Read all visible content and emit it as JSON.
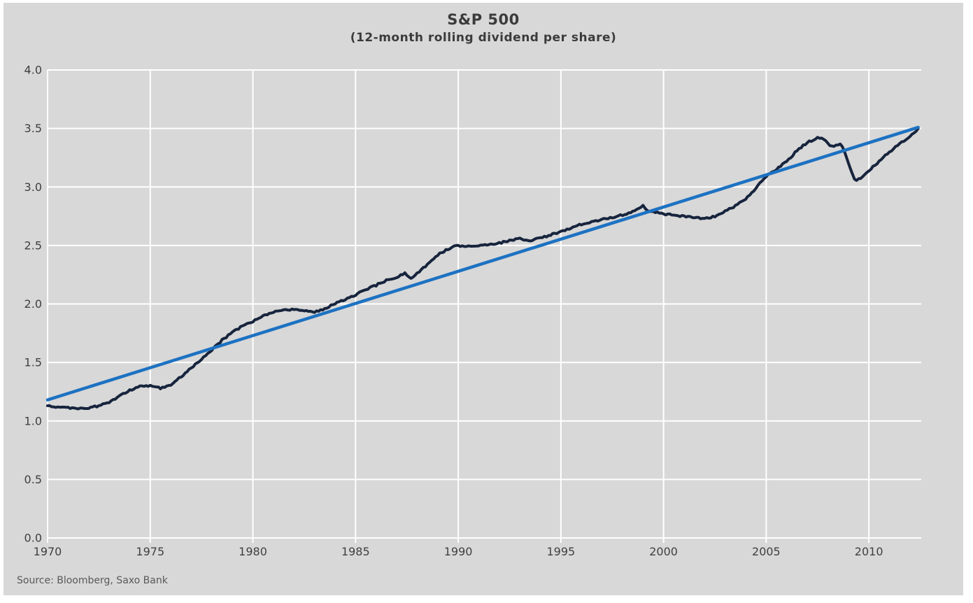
{
  "header": {
    "title": "S&P 500",
    "subtitle": "(12-month rolling dividend per share)"
  },
  "footer": {
    "source": "Source: Bloomberg, Saxo Bank"
  },
  "colors": {
    "panel_background": "#d8d8d8",
    "gridline": "#ffffff",
    "series_dividend": "#17243d",
    "series_trend": "#1d72c2",
    "title_text": "#3b3b3b",
    "tick_text": "#3f3f3f",
    "source_text": "#595959"
  },
  "chart_data": {
    "type": "line",
    "title": "S&P 500",
    "subtitle": "(12-month rolling dividend per share)",
    "xlabel": "",
    "ylabel": "",
    "xlim": [
      1970,
      2012.55
    ],
    "ylim": [
      0.0,
      4.0
    ],
    "xticks": [
      1970,
      1975,
      1980,
      1985,
      1990,
      1995,
      2000,
      2005,
      2010
    ],
    "yticks": [
      0.0,
      0.5,
      1.0,
      1.5,
      2.0,
      2.5,
      3.0,
      3.5,
      4.0
    ],
    "ytick_decimals": 1,
    "grid": true,
    "legend_position": "none",
    "source": "Source: Bloomberg, Saxo Bank",
    "series": [
      {
        "name": "S&P 500 12-month rolling dividend per share",
        "color": "#17243d",
        "width": 4,
        "style": "wiggly",
        "points": [
          [
            1970.0,
            1.13
          ],
          [
            1970.5,
            1.12
          ],
          [
            1971.0,
            1.11
          ],
          [
            1971.5,
            1.11
          ],
          [
            1972.0,
            1.11
          ],
          [
            1972.5,
            1.13
          ],
          [
            1973.0,
            1.16
          ],
          [
            1973.5,
            1.21
          ],
          [
            1974.0,
            1.26
          ],
          [
            1974.5,
            1.3
          ],
          [
            1975.0,
            1.3
          ],
          [
            1975.5,
            1.28
          ],
          [
            1976.0,
            1.31
          ],
          [
            1976.5,
            1.38
          ],
          [
            1977.0,
            1.45
          ],
          [
            1977.5,
            1.53
          ],
          [
            1978.0,
            1.61
          ],
          [
            1978.5,
            1.69
          ],
          [
            1979.0,
            1.76
          ],
          [
            1979.5,
            1.81
          ],
          [
            1980.0,
            1.85
          ],
          [
            1980.5,
            1.9
          ],
          [
            1981.0,
            1.93
          ],
          [
            1981.5,
            1.95
          ],
          [
            1982.0,
            1.95
          ],
          [
            1982.5,
            1.94
          ],
          [
            1983.0,
            1.93
          ],
          [
            1983.5,
            1.96
          ],
          [
            1984.0,
            2.0
          ],
          [
            1984.5,
            2.04
          ],
          [
            1985.0,
            2.08
          ],
          [
            1985.5,
            2.12
          ],
          [
            1986.0,
            2.16
          ],
          [
            1986.5,
            2.2
          ],
          [
            1987.0,
            2.23
          ],
          [
            1987.4,
            2.26
          ],
          [
            1987.7,
            2.22
          ],
          [
            1988.0,
            2.26
          ],
          [
            1988.5,
            2.34
          ],
          [
            1989.0,
            2.42
          ],
          [
            1989.5,
            2.47
          ],
          [
            1990.0,
            2.5
          ],
          [
            1990.5,
            2.49
          ],
          [
            1991.0,
            2.5
          ],
          [
            1991.5,
            2.51
          ],
          [
            1992.0,
            2.52
          ],
          [
            1992.5,
            2.54
          ],
          [
            1993.0,
            2.56
          ],
          [
            1993.4,
            2.54
          ],
          [
            1994.0,
            2.56
          ],
          [
            1994.5,
            2.59
          ],
          [
            1995.0,
            2.62
          ],
          [
            1995.5,
            2.65
          ],
          [
            1996.0,
            2.68
          ],
          [
            1996.5,
            2.7
          ],
          [
            1997.0,
            2.72
          ],
          [
            1997.5,
            2.74
          ],
          [
            1998.0,
            2.76
          ],
          [
            1998.5,
            2.79
          ],
          [
            1999.0,
            2.84
          ],
          [
            1999.3,
            2.79
          ],
          [
            2000.0,
            2.77
          ],
          [
            2000.5,
            2.76
          ],
          [
            2001.0,
            2.75
          ],
          [
            2001.5,
            2.74
          ],
          [
            2002.0,
            2.73
          ],
          [
            2002.5,
            2.75
          ],
          [
            2003.0,
            2.79
          ],
          [
            2003.5,
            2.84
          ],
          [
            2004.0,
            2.9
          ],
          [
            2004.5,
            2.99
          ],
          [
            2005.0,
            3.09
          ],
          [
            2005.5,
            3.15
          ],
          [
            2006.0,
            3.22
          ],
          [
            2006.5,
            3.31
          ],
          [
            2007.0,
            3.38
          ],
          [
            2007.5,
            3.42
          ],
          [
            2007.8,
            3.41
          ],
          [
            2008.1,
            3.36
          ],
          [
            2008.4,
            3.35
          ],
          [
            2008.6,
            3.37
          ],
          [
            2008.8,
            3.31
          ],
          [
            2009.0,
            3.2
          ],
          [
            2009.3,
            3.06
          ],
          [
            2009.6,
            3.07
          ],
          [
            2010.0,
            3.14
          ],
          [
            2010.5,
            3.22
          ],
          [
            2011.0,
            3.3
          ],
          [
            2011.5,
            3.37
          ],
          [
            2012.0,
            3.43
          ],
          [
            2012.4,
            3.5
          ]
        ]
      },
      {
        "name": "Linear trend",
        "color": "#1d72c2",
        "width": 4.5,
        "style": "straight",
        "points": [
          [
            1970.0,
            1.18
          ],
          [
            2012.4,
            3.51
          ]
        ]
      }
    ]
  }
}
